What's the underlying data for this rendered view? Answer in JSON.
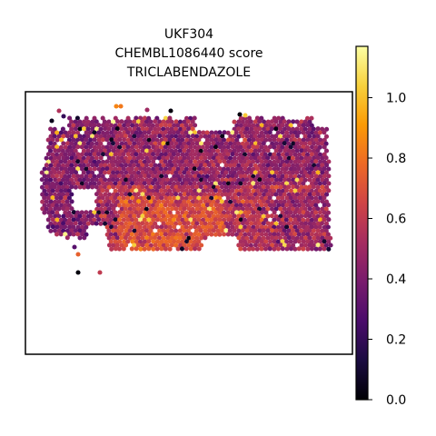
{
  "chart_data": {
    "type": "scatter",
    "title_lines": [
      "UKF304",
      "CHEMBL1086440 score",
      "TRICLABENDAZOLE"
    ],
    "xlabel": "",
    "ylabel": "",
    "grid": false,
    "axis_ticks": false,
    "marker": "hexagon",
    "colormap": "inferno",
    "colorbar": {
      "vmin": 0.0,
      "vmax": 1.17,
      "ticks": [
        0.0,
        0.2,
        0.4,
        0.6,
        0.8,
        1.0
      ],
      "tick_labels": [
        "0.0",
        "0.2",
        "0.4",
        "0.6",
        "0.8",
        "1.0"
      ]
    },
    "colormap_stops": [
      "#000004",
      "#1b0c41",
      "#4a0c6b",
      "#781c6d",
      "#a52c60",
      "#cf4446",
      "#ed6925",
      "#fb9b06",
      "#f7d13d",
      "#fcffa4"
    ],
    "region_description": "spatial spots; dense, mostly purple upper band with orange center-bottom and orange lower-right tail"
  }
}
